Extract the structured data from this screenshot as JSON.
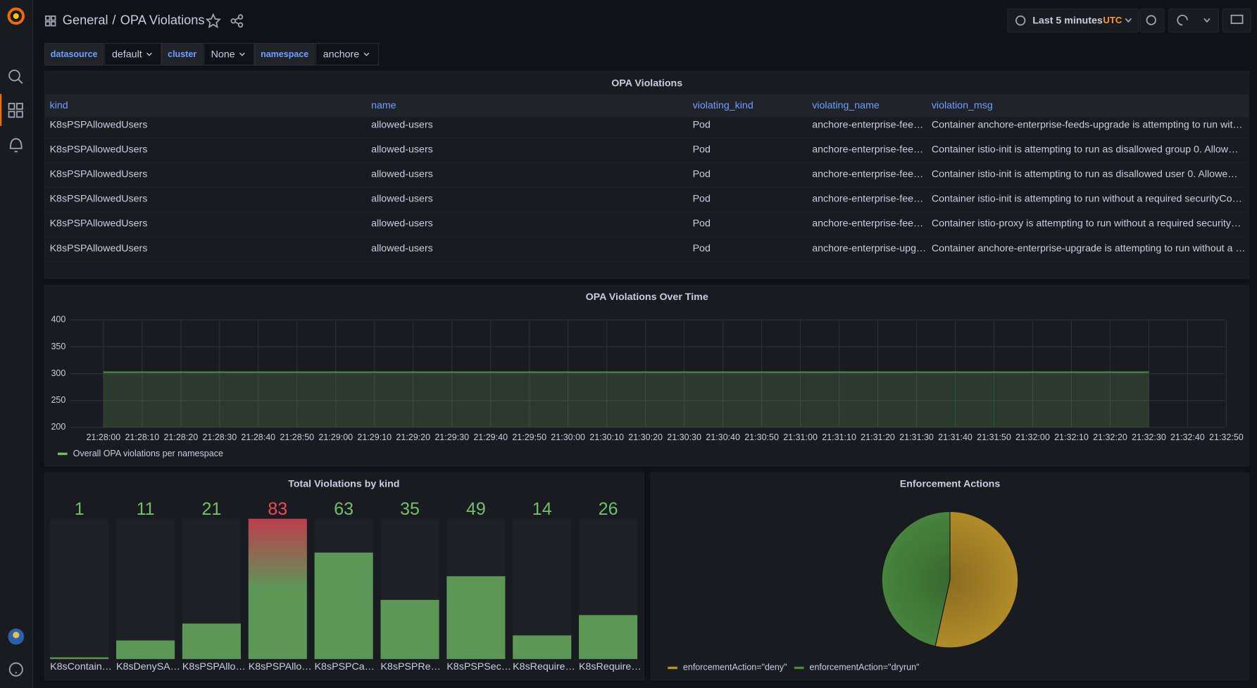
{
  "header": {
    "folder": "General",
    "separator": "/",
    "title": "OPA Violations"
  },
  "time_picker": {
    "range": "Last 5 minutes",
    "timezone": "UTC"
  },
  "variables": [
    {
      "label": "datasource",
      "value": "default"
    },
    {
      "label": "cluster",
      "value": "None"
    },
    {
      "label": "namespace",
      "value": "anchore"
    }
  ],
  "table": {
    "title": "OPA Violations",
    "columns": [
      "kind",
      "name",
      "violating_kind",
      "violating_name",
      "violation_msg"
    ],
    "rows": [
      [
        "K8sPSPAllowedUsers",
        "allowed-users",
        "Pod",
        "anchore-enterprise-fee…",
        "Container anchore-enterprise-feeds-upgrade is attempting to run wit…"
      ],
      [
        "K8sPSPAllowedUsers",
        "allowed-users",
        "Pod",
        "anchore-enterprise-fee…",
        "Container istio-init is attempting to run as disallowed group 0. Allow…"
      ],
      [
        "K8sPSPAllowedUsers",
        "allowed-users",
        "Pod",
        "anchore-enterprise-fee…",
        "Container istio-init is attempting to run as disallowed user 0. Allowe…"
      ],
      [
        "K8sPSPAllowedUsers",
        "allowed-users",
        "Pod",
        "anchore-enterprise-fee…",
        "Container istio-init is attempting to run without a required securityCo…"
      ],
      [
        "K8sPSPAllowedUsers",
        "allowed-users",
        "Pod",
        "anchore-enterprise-fee…",
        "Container istio-proxy is attempting to run without a required security…"
      ],
      [
        "K8sPSPAllowedUsers",
        "allowed-users",
        "Pod",
        "anchore-enterprise-upg…",
        "Container anchore-enterprise-upgrade is attempting to run without a …"
      ]
    ]
  },
  "chart_data": [
    {
      "type": "area",
      "title": "OPA Violations Over Time",
      "x": [
        "21:28:00",
        "21:28:10",
        "21:28:20",
        "21:28:30",
        "21:28:40",
        "21:28:50",
        "21:29:00",
        "21:29:10",
        "21:29:20",
        "21:29:30",
        "21:29:40",
        "21:29:50",
        "21:30:00",
        "21:30:10",
        "21:30:20",
        "21:30:30",
        "21:30:40",
        "21:30:50",
        "21:31:00",
        "21:31:10",
        "21:31:20",
        "21:31:30",
        "21:31:40",
        "21:31:50",
        "21:32:00",
        "21:32:10",
        "21:32:20",
        "21:32:30",
        "21:32:40",
        "21:32:50"
      ],
      "series": [
        {
          "name": "Overall OPA violations per namespace",
          "color": "#73bf69",
          "values": [
            303,
            303,
            303,
            303,
            303,
            303,
            303,
            303,
            303,
            303,
            303,
            303,
            303,
            303,
            303,
            303,
            303,
            303,
            303,
            303,
            303,
            303,
            303,
            303,
            303,
            303,
            303,
            303,
            null,
            null
          ]
        }
      ],
      "ylim": [
        200,
        400
      ],
      "yticks": [
        200,
        250,
        300,
        350,
        400
      ],
      "grid": true
    },
    {
      "type": "bar",
      "title": "Total Violations by kind",
      "categories": [
        "K8sContain…",
        "K8sDenySA…",
        "K8sPSPAllo…",
        "K8sPSPAllo…",
        "K8sPSPCa…",
        "K8sPSPRe…",
        "K8sPSPSec…",
        "K8sRequire…",
        "K8sRequire…"
      ],
      "values": [
        1,
        11,
        21,
        83,
        63,
        35,
        49,
        14,
        26
      ],
      "colors": [
        "#73bf69",
        "#73bf69",
        "#73bf69",
        "#f2495c",
        "#73bf69",
        "#73bf69",
        "#73bf69",
        "#73bf69",
        "#73bf69"
      ]
    },
    {
      "type": "pie",
      "title": "Enforcement Actions",
      "series": [
        {
          "name": "enforcementAction=\"deny\"",
          "color": "#b8912a",
          "values": [
            162
          ]
        },
        {
          "name": "enforcementAction=\"dryrun\"",
          "color": "#4a8a3f",
          "values": [
            141
          ]
        }
      ]
    }
  ]
}
